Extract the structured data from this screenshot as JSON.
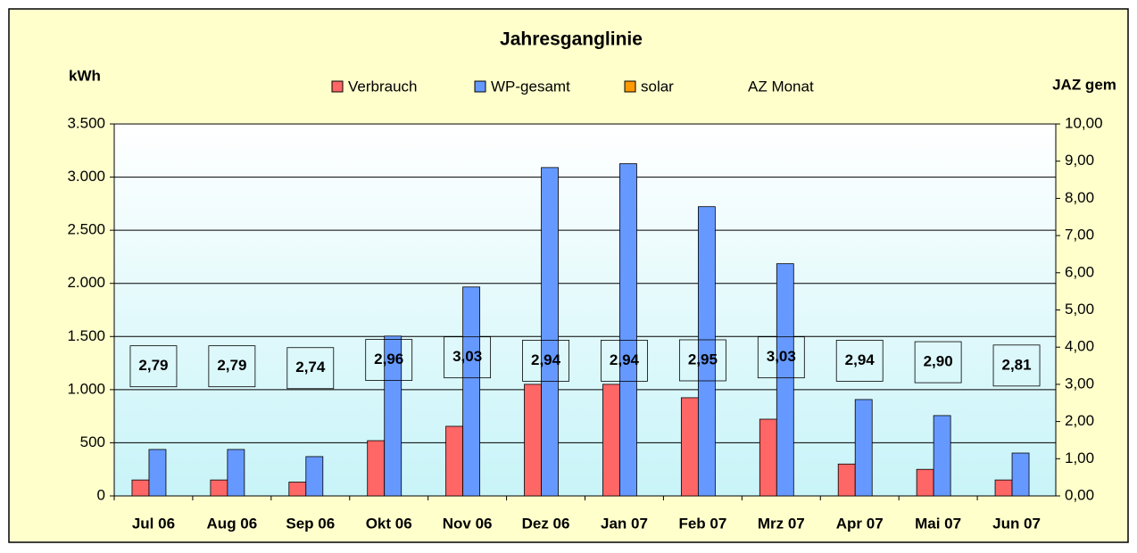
{
  "chart_data": {
    "type": "bar",
    "title": "Jahresganglinie",
    "y_label": "kWh",
    "y2_label": "JAZ gem",
    "categories": [
      "Jul 06",
      "Aug 06",
      "Sep 06",
      "Okt 06",
      "Nov 06",
      "Dez 06",
      "Jan 07",
      "Feb 07",
      "Mrz 07",
      "Apr 07",
      "Mai 07",
      "Jun 07"
    ],
    "series": [
      {
        "name": "Verbrauch",
        "color": "#ff6666",
        "values": [
          150,
          150,
          130,
          520,
          655,
          1050,
          1050,
          924,
          722,
          300,
          250,
          150
        ]
      },
      {
        "name": "WP-gesamt",
        "color": "#6699ff",
        "values": [
          437,
          437,
          370,
          1504,
          1966,
          3090,
          3126,
          2722,
          2185,
          907,
          756,
          403
        ]
      },
      {
        "name": "solar",
        "color": "#ff9900",
        "values": [
          0,
          0,
          0,
          0,
          0,
          0,
          0,
          0,
          0,
          0,
          0,
          0
        ]
      },
      {
        "name": "AZ Monat",
        "axis": "y2",
        "type": "line",
        "values": [
          2.79,
          2.79,
          2.74,
          2.96,
          3.03,
          2.94,
          2.94,
          2.95,
          3.03,
          2.94,
          2.9,
          2.81
        ],
        "value_labels": [
          "2,79",
          "2,79",
          "2,74",
          "2,96",
          "3,03",
          "2,94",
          "2,94",
          "2,95",
          "3,03",
          "2,94",
          "2,90",
          "2,81"
        ]
      }
    ],
    "ylim": [
      0,
      3500
    ],
    "yticks": [
      0,
      500,
      {
        "value": 1000,
        "label": "1.000"
      },
      {
        "value": 1500,
        "label": "1.500"
      },
      {
        "value": 2000,
        "label": "2.000"
      },
      {
        "value": 2500,
        "label": "2.500"
      },
      {
        "value": 3000,
        "label": "3.000"
      },
      {
        "value": 3500,
        "label": "3.500"
      }
    ],
    "y2lim": [
      0,
      10
    ],
    "y2ticks": [
      {
        "value": 0,
        "label": "0,00"
      },
      {
        "value": 1,
        "label": "1,00"
      },
      {
        "value": 2,
        "label": "2,00"
      },
      {
        "value": 3,
        "label": "3,00"
      },
      {
        "value": 4,
        "label": "4,00"
      },
      {
        "value": 5,
        "label": "5,00"
      },
      {
        "value": 6,
        "label": "6,00"
      },
      {
        "value": 7,
        "label": "7,00"
      },
      {
        "value": 8,
        "label": "8,00"
      },
      {
        "value": 9,
        "label": "9,00"
      },
      {
        "value": 10,
        "label": "10,00"
      }
    ],
    "grid": true
  }
}
